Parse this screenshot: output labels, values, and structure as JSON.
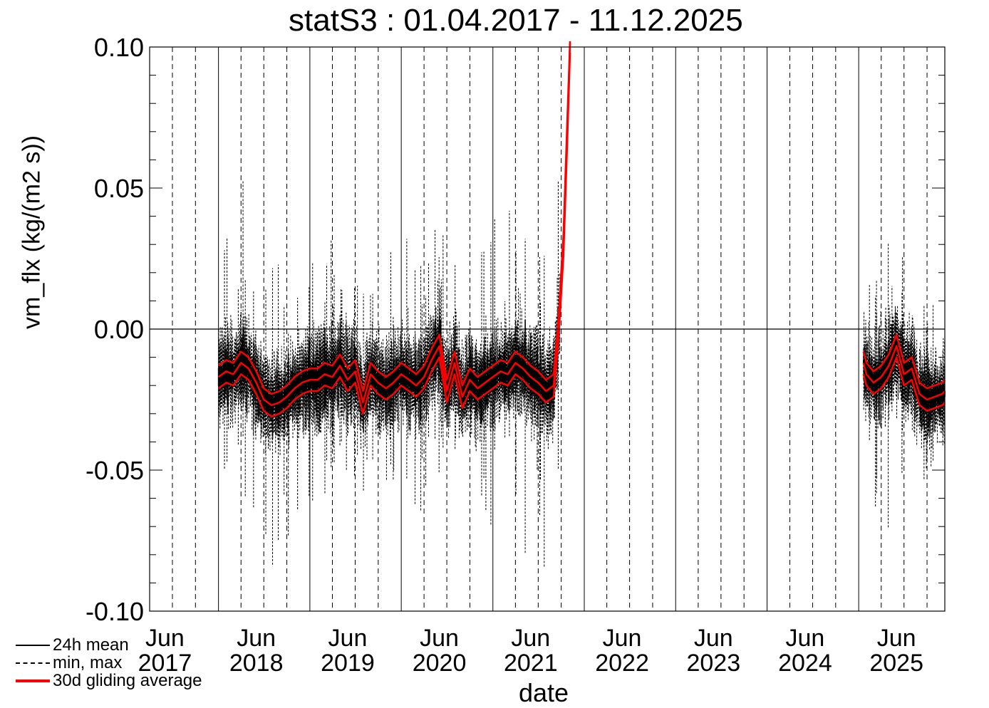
{
  "chart_data": {
    "type": "line",
    "title": "statS3 : 01.04.2017 - 11.12.2025",
    "xlabel": "date",
    "ylabel": "vm_flx (kg/(m2 s))",
    "xlim": [
      "2017-04-01",
      "2025-12-11"
    ],
    "ylim": [
      -0.1,
      0.1
    ],
    "y_ticks": [
      "0.10",
      "0.05",
      "0.00",
      "-0.05",
      "-0.10"
    ],
    "x_ticks": [
      {
        "month": "Jun",
        "year": "2017"
      },
      {
        "month": "Jun",
        "year": "2018"
      },
      {
        "month": "Jun",
        "year": "2019"
      },
      {
        "month": "Jun",
        "year": "2020"
      },
      {
        "month": "Jun",
        "year": "2021"
      },
      {
        "month": "Jun",
        "year": "2022"
      },
      {
        "month": "Jun",
        "year": "2023"
      },
      {
        "month": "Jun",
        "year": "2024"
      },
      {
        "month": "Jun",
        "year": "2025"
      }
    ],
    "zero_line": 0.0,
    "gaps": [
      [
        "2021-11-15",
        "2025-01-20"
      ]
    ],
    "legend": [
      {
        "label": "24h mean",
        "style": "solid",
        "color": "#000000"
      },
      {
        "label": "min, max",
        "style": "dashed",
        "color": "#000000"
      },
      {
        "label": "30d gliding average",
        "style": "solid-thick",
        "color": "#ff0000"
      }
    ],
    "series": [
      {
        "name": "30d gliding average",
        "color": "#ff0000",
        "points": [
          [
            "2018-01-01",
            -0.017
          ],
          [
            "2018-02-01",
            -0.015
          ],
          [
            "2018-03-01",
            -0.016
          ],
          [
            "2018-04-01",
            -0.012
          ],
          [
            "2018-05-01",
            -0.014
          ],
          [
            "2018-06-01",
            -0.019
          ],
          [
            "2018-07-01",
            -0.025
          ],
          [
            "2018-08-01",
            -0.027
          ],
          [
            "2018-09-01",
            -0.026
          ],
          [
            "2018-10-01",
            -0.024
          ],
          [
            "2018-11-01",
            -0.021
          ],
          [
            "2018-12-01",
            -0.019
          ],
          [
            "2019-01-01",
            -0.018
          ],
          [
            "2019-02-01",
            -0.018
          ],
          [
            "2019-03-01",
            -0.016
          ],
          [
            "2019-04-01",
            -0.017
          ],
          [
            "2019-05-01",
            -0.013
          ],
          [
            "2019-06-01",
            -0.018
          ],
          [
            "2019-07-01",
            -0.015
          ],
          [
            "2019-08-01",
            -0.026
          ],
          [
            "2019-09-01",
            -0.016
          ],
          [
            "2019-10-01",
            -0.019
          ],
          [
            "2019-11-01",
            -0.021
          ],
          [
            "2019-12-01",
            -0.019
          ],
          [
            "2020-01-01",
            -0.016
          ],
          [
            "2020-02-01",
            -0.018
          ],
          [
            "2020-03-01",
            -0.02
          ],
          [
            "2020-04-01",
            -0.017
          ],
          [
            "2020-05-01",
            -0.011
          ],
          [
            "2020-06-01",
            -0.006
          ],
          [
            "2020-07-01",
            -0.022
          ],
          [
            "2020-08-01",
            -0.012
          ],
          [
            "2020-09-01",
            -0.024
          ],
          [
            "2020-10-01",
            -0.018
          ],
          [
            "2020-11-01",
            -0.021
          ],
          [
            "2020-12-01",
            -0.019
          ],
          [
            "2021-01-01",
            -0.017
          ],
          [
            "2021-02-01",
            -0.015
          ],
          [
            "2021-03-01",
            -0.016
          ],
          [
            "2021-04-01",
            -0.012
          ],
          [
            "2021-05-01",
            -0.014
          ],
          [
            "2021-06-01",
            -0.017
          ],
          [
            "2021-07-01",
            -0.019
          ],
          [
            "2021-08-01",
            -0.022
          ],
          [
            "2021-09-01",
            -0.02
          ],
          [
            "2021-09-20",
            0.0
          ],
          [
            "2021-10-10",
            0.03
          ],
          [
            "2021-10-25",
            0.07
          ],
          [
            "2021-11-05",
            0.102
          ],
          [
            "2025-01-20",
            -0.012
          ],
          [
            "2025-02-01",
            -0.016
          ],
          [
            "2025-03-01",
            -0.019
          ],
          [
            "2025-04-01",
            -0.017
          ],
          [
            "2025-05-01",
            -0.013
          ],
          [
            "2025-06-01",
            -0.006
          ],
          [
            "2025-07-01",
            -0.016
          ],
          [
            "2025-08-01",
            -0.014
          ],
          [
            "2025-09-01",
            -0.023
          ],
          [
            "2025-10-01",
            -0.025
          ],
          [
            "2025-11-01",
            -0.024
          ],
          [
            "2025-12-01",
            -0.023
          ],
          [
            "2025-12-11",
            -0.022
          ]
        ]
      }
    ]
  }
}
